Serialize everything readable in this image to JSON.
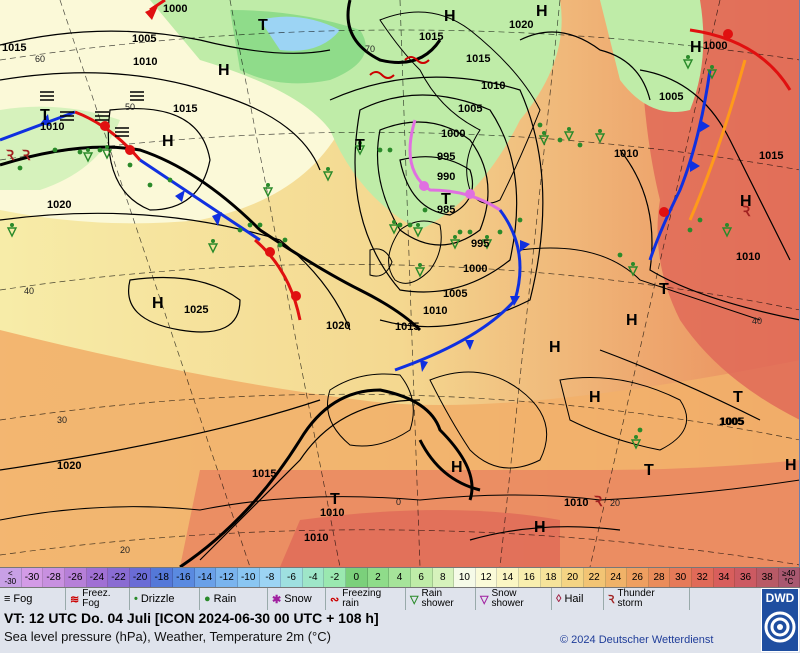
{
  "map": {
    "pressure_labels": [
      {
        "text": "1000"
      },
      {
        "text": "1005"
      },
      {
        "text": "1010"
      },
      {
        "text": "1015"
      },
      {
        "text": "1010"
      },
      {
        "text": "1015"
      },
      {
        "text": "1020"
      },
      {
        "text": "1015"
      },
      {
        "text": "1010"
      },
      {
        "text": "1005"
      },
      {
        "text": "1000"
      },
      {
        "text": "995"
      },
      {
        "text": "990"
      },
      {
        "text": "985"
      },
      {
        "text": "995"
      },
      {
        "text": "1000"
      },
      {
        "text": "1005"
      },
      {
        "text": "1010"
      },
      {
        "text": "1015"
      },
      {
        "text": "1020"
      },
      {
        "text": "1025"
      },
      {
        "text": "1020"
      },
      {
        "text": "1015"
      },
      {
        "text": "1010"
      },
      {
        "text": "1010"
      },
      {
        "text": "1010"
      },
      {
        "text": "1005"
      },
      {
        "text": "1000"
      },
      {
        "text": "1005"
      },
      {
        "text": "1010"
      },
      {
        "text": "1015"
      },
      {
        "text": "1010"
      },
      {
        "text": "1005"
      },
      {
        "text": "1020"
      },
      {
        "text": "1015"
      },
      {
        "text": "1020"
      }
    ],
    "centers": [
      {
        "type": "H"
      },
      {
        "type": "H"
      },
      {
        "type": "H"
      },
      {
        "type": "T"
      },
      {
        "type": "T"
      },
      {
        "type": "T"
      },
      {
        "type": "T"
      },
      {
        "type": "H"
      },
      {
        "type": "H"
      },
      {
        "type": "H"
      },
      {
        "type": "H"
      },
      {
        "type": "H"
      },
      {
        "type": "H"
      },
      {
        "type": "T"
      },
      {
        "type": "T"
      },
      {
        "type": "T"
      },
      {
        "type": "H"
      },
      {
        "type": "T"
      },
      {
        "type": "H"
      },
      {
        "type": "H"
      },
      {
        "type": "H"
      }
    ],
    "lat_labels": [
      "60",
      "50",
      "70",
      "40",
      "30",
      "20",
      "40",
      "20",
      "0"
    ]
  },
  "scale": {
    "cells": [
      {
        "label": "<\n-30",
        "color": "#c8a0e6"
      },
      {
        "label": "-30",
        "color": "#d39be6"
      },
      {
        "label": "-28",
        "color": "#c890e0"
      },
      {
        "label": "-26",
        "color": "#b67fd8"
      },
      {
        "label": "-24",
        "color": "#a070d4"
      },
      {
        "label": "-22",
        "color": "#8a6cd2"
      },
      {
        "label": "-20",
        "color": "#6a6cd6"
      },
      {
        "label": "-18",
        "color": "#5478d8"
      },
      {
        "label": "-16",
        "color": "#5a8ae0"
      },
      {
        "label": "-14",
        "color": "#6aa0e8"
      },
      {
        "label": "-12",
        "color": "#7ab4ee"
      },
      {
        "label": "-10",
        "color": "#8ac6f2"
      },
      {
        "label": "-8",
        "color": "#9cd4f4"
      },
      {
        "label": "-6",
        "color": "#9ee0e0"
      },
      {
        "label": "-4",
        "color": "#9ee6c8"
      },
      {
        "label": "-2",
        "color": "#9ae8b0"
      },
      {
        "label": "0",
        "color": "#7bd07b"
      },
      {
        "label": "2",
        "color": "#8fdc8a"
      },
      {
        "label": "4",
        "color": "#a6e49a"
      },
      {
        "label": "6",
        "color": "#bfeca8"
      },
      {
        "label": "8",
        "color": "#d6f2bc"
      },
      {
        "label": "10",
        "color": "#f6fbe8"
      },
      {
        "label": "12",
        "color": "#fbfbd8"
      },
      {
        "label": "14",
        "color": "#fbf6c4"
      },
      {
        "label": "16",
        "color": "#f8eeae"
      },
      {
        "label": "18",
        "color": "#f6e39a"
      },
      {
        "label": "20",
        "color": "#f4d484"
      },
      {
        "label": "22",
        "color": "#f2c474"
      },
      {
        "label": "24",
        "color": "#f0b268"
      },
      {
        "label": "26",
        "color": "#ee9f60"
      },
      {
        "label": "28",
        "color": "#ea8c5a"
      },
      {
        "label": "30",
        "color": "#e67a58"
      },
      {
        "label": "32",
        "color": "#e06a58"
      },
      {
        "label": "34",
        "color": "#d85e5c"
      },
      {
        "label": "36",
        "color": "#cc5a62"
      },
      {
        "label": "38",
        "color": "#b85a66"
      },
      {
        "label": "≥40\n°C",
        "color": "#a85870"
      }
    ]
  },
  "legend": {
    "items": [
      {
        "sym": "≡",
        "symcolor": "#000",
        "label": "Fog"
      },
      {
        "sym": "≋",
        "symcolor": "#c00",
        "label": "Freez.\nFog"
      },
      {
        "sym": "•",
        "symcolor": "#2a8a2a",
        "label": "Drizzle"
      },
      {
        "sym": "●",
        "symcolor": "#2a8a2a",
        "label": "Rain"
      },
      {
        "sym": "✱",
        "symcolor": "#a020a0",
        "label": "Snow"
      },
      {
        "sym": "∾",
        "symcolor": "#c00",
        "label": "Freezing\nrain"
      },
      {
        "sym": "▽",
        "symcolor": "#2a8a2a",
        "label": "Rain\nshower"
      },
      {
        "sym": "▽",
        "symcolor": "#a020a0",
        "label": "Snow\nshower"
      },
      {
        "sym": "◊",
        "symcolor": "#a02040",
        "label": "Hail"
      },
      {
        "sym": "Ꝛ",
        "symcolor": "#a02020",
        "label": "Thunder\nstorm"
      }
    ]
  },
  "footer": {
    "valid_time": "VT: 12 UTC Do.  04 Juli [ICON 2024-06-30  00 UTC + 108 h]",
    "description": "Sea level pressure (hPa), Weather, Temperature 2m (°C)",
    "copyright": "© 2024 Deutscher Wetterdienst",
    "logo": "DWD"
  },
  "colors": {
    "cold_front": "#1030e0",
    "warm_front": "#e01010",
    "occlusion": "#e070e0",
    "trough": "#ff9a1a"
  }
}
